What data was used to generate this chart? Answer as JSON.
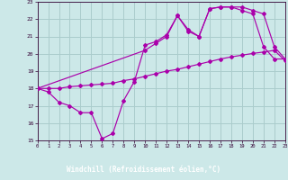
{
  "background_color": "#cce8e8",
  "grid_color": "#aacccc",
  "line_color": "#aa00aa",
  "xlabel": "Windchill (Refroidissement éolien,°C)",
  "xlabel_bg": "#330066",
  "xlabel_fg": "#ffffff",
  "xlim": [
    0,
    23
  ],
  "ylim": [
    15,
    23
  ],
  "yticks": [
    15,
    16,
    17,
    18,
    19,
    20,
    21,
    22,
    23
  ],
  "xticks": [
    0,
    1,
    2,
    3,
    4,
    5,
    6,
    7,
    8,
    9,
    10,
    11,
    12,
    13,
    14,
    15,
    16,
    17,
    18,
    19,
    20,
    21,
    22,
    23
  ],
  "line1_x": [
    0,
    1,
    2,
    3,
    4,
    5,
    6,
    7,
    8,
    9,
    10,
    11,
    12,
    13,
    14,
    15,
    16,
    17,
    18,
    19,
    20,
    21,
    22,
    23
  ],
  "line1_y": [
    18.0,
    17.8,
    17.2,
    17.0,
    16.6,
    16.6,
    15.1,
    15.4,
    17.3,
    18.4,
    20.5,
    20.7,
    21.1,
    22.2,
    21.3,
    21.0,
    22.6,
    22.7,
    22.7,
    22.5,
    22.3,
    20.4,
    19.7,
    19.7
  ],
  "line2_x": [
    0,
    1,
    2,
    3,
    4,
    5,
    6,
    7,
    8,
    9,
    10,
    11,
    12,
    13,
    14,
    15,
    16,
    17,
    18,
    19,
    20,
    21,
    22,
    23
  ],
  "line2_y": [
    18.0,
    18.0,
    18.0,
    18.1,
    18.15,
    18.2,
    18.25,
    18.3,
    18.45,
    18.55,
    18.7,
    18.85,
    19.0,
    19.1,
    19.25,
    19.4,
    19.55,
    19.7,
    19.82,
    19.92,
    20.02,
    20.1,
    20.2,
    19.6
  ],
  "line3_x": [
    0,
    10,
    11,
    12,
    13,
    14,
    15,
    16,
    17,
    18,
    19,
    20,
    21,
    22,
    23
  ],
  "line3_y": [
    18.0,
    20.2,
    20.6,
    21.0,
    22.2,
    21.4,
    21.0,
    22.6,
    22.7,
    22.7,
    22.7,
    22.5,
    22.3,
    20.4,
    19.7
  ]
}
